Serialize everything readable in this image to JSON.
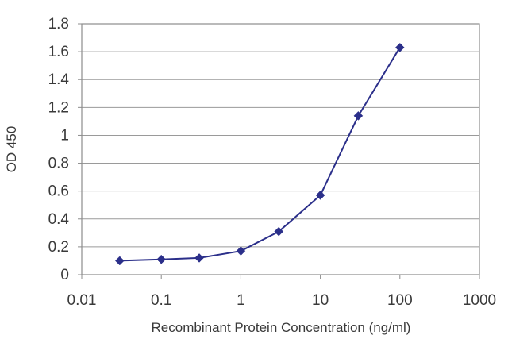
{
  "chart_data": {
    "type": "line",
    "title": "",
    "xlabel": "Recombinant Protein Concentration (ng/ml)",
    "ylabel": "OD 450",
    "xscale": "log",
    "xlim": [
      0.01,
      1000
    ],
    "ylim": [
      0,
      1.8
    ],
    "x_ticks": [
      "0.01",
      "0.1",
      "1",
      "10",
      "100",
      "1000"
    ],
    "y_ticks": [
      "0",
      "0.2",
      "0.4",
      "0.6",
      "0.8",
      "1",
      "1.2",
      "1.4",
      "1.6",
      "1.8"
    ],
    "grid": "horizontal",
    "legend": "none",
    "series": [
      {
        "color": "#2b2f8a",
        "marker": "diamond",
        "x": [
          0.03,
          0.1,
          0.3,
          1,
          3,
          10,
          30,
          100
        ],
        "y": [
          0.1,
          0.11,
          0.12,
          0.17,
          0.31,
          0.57,
          1.14,
          1.63
        ]
      }
    ]
  }
}
